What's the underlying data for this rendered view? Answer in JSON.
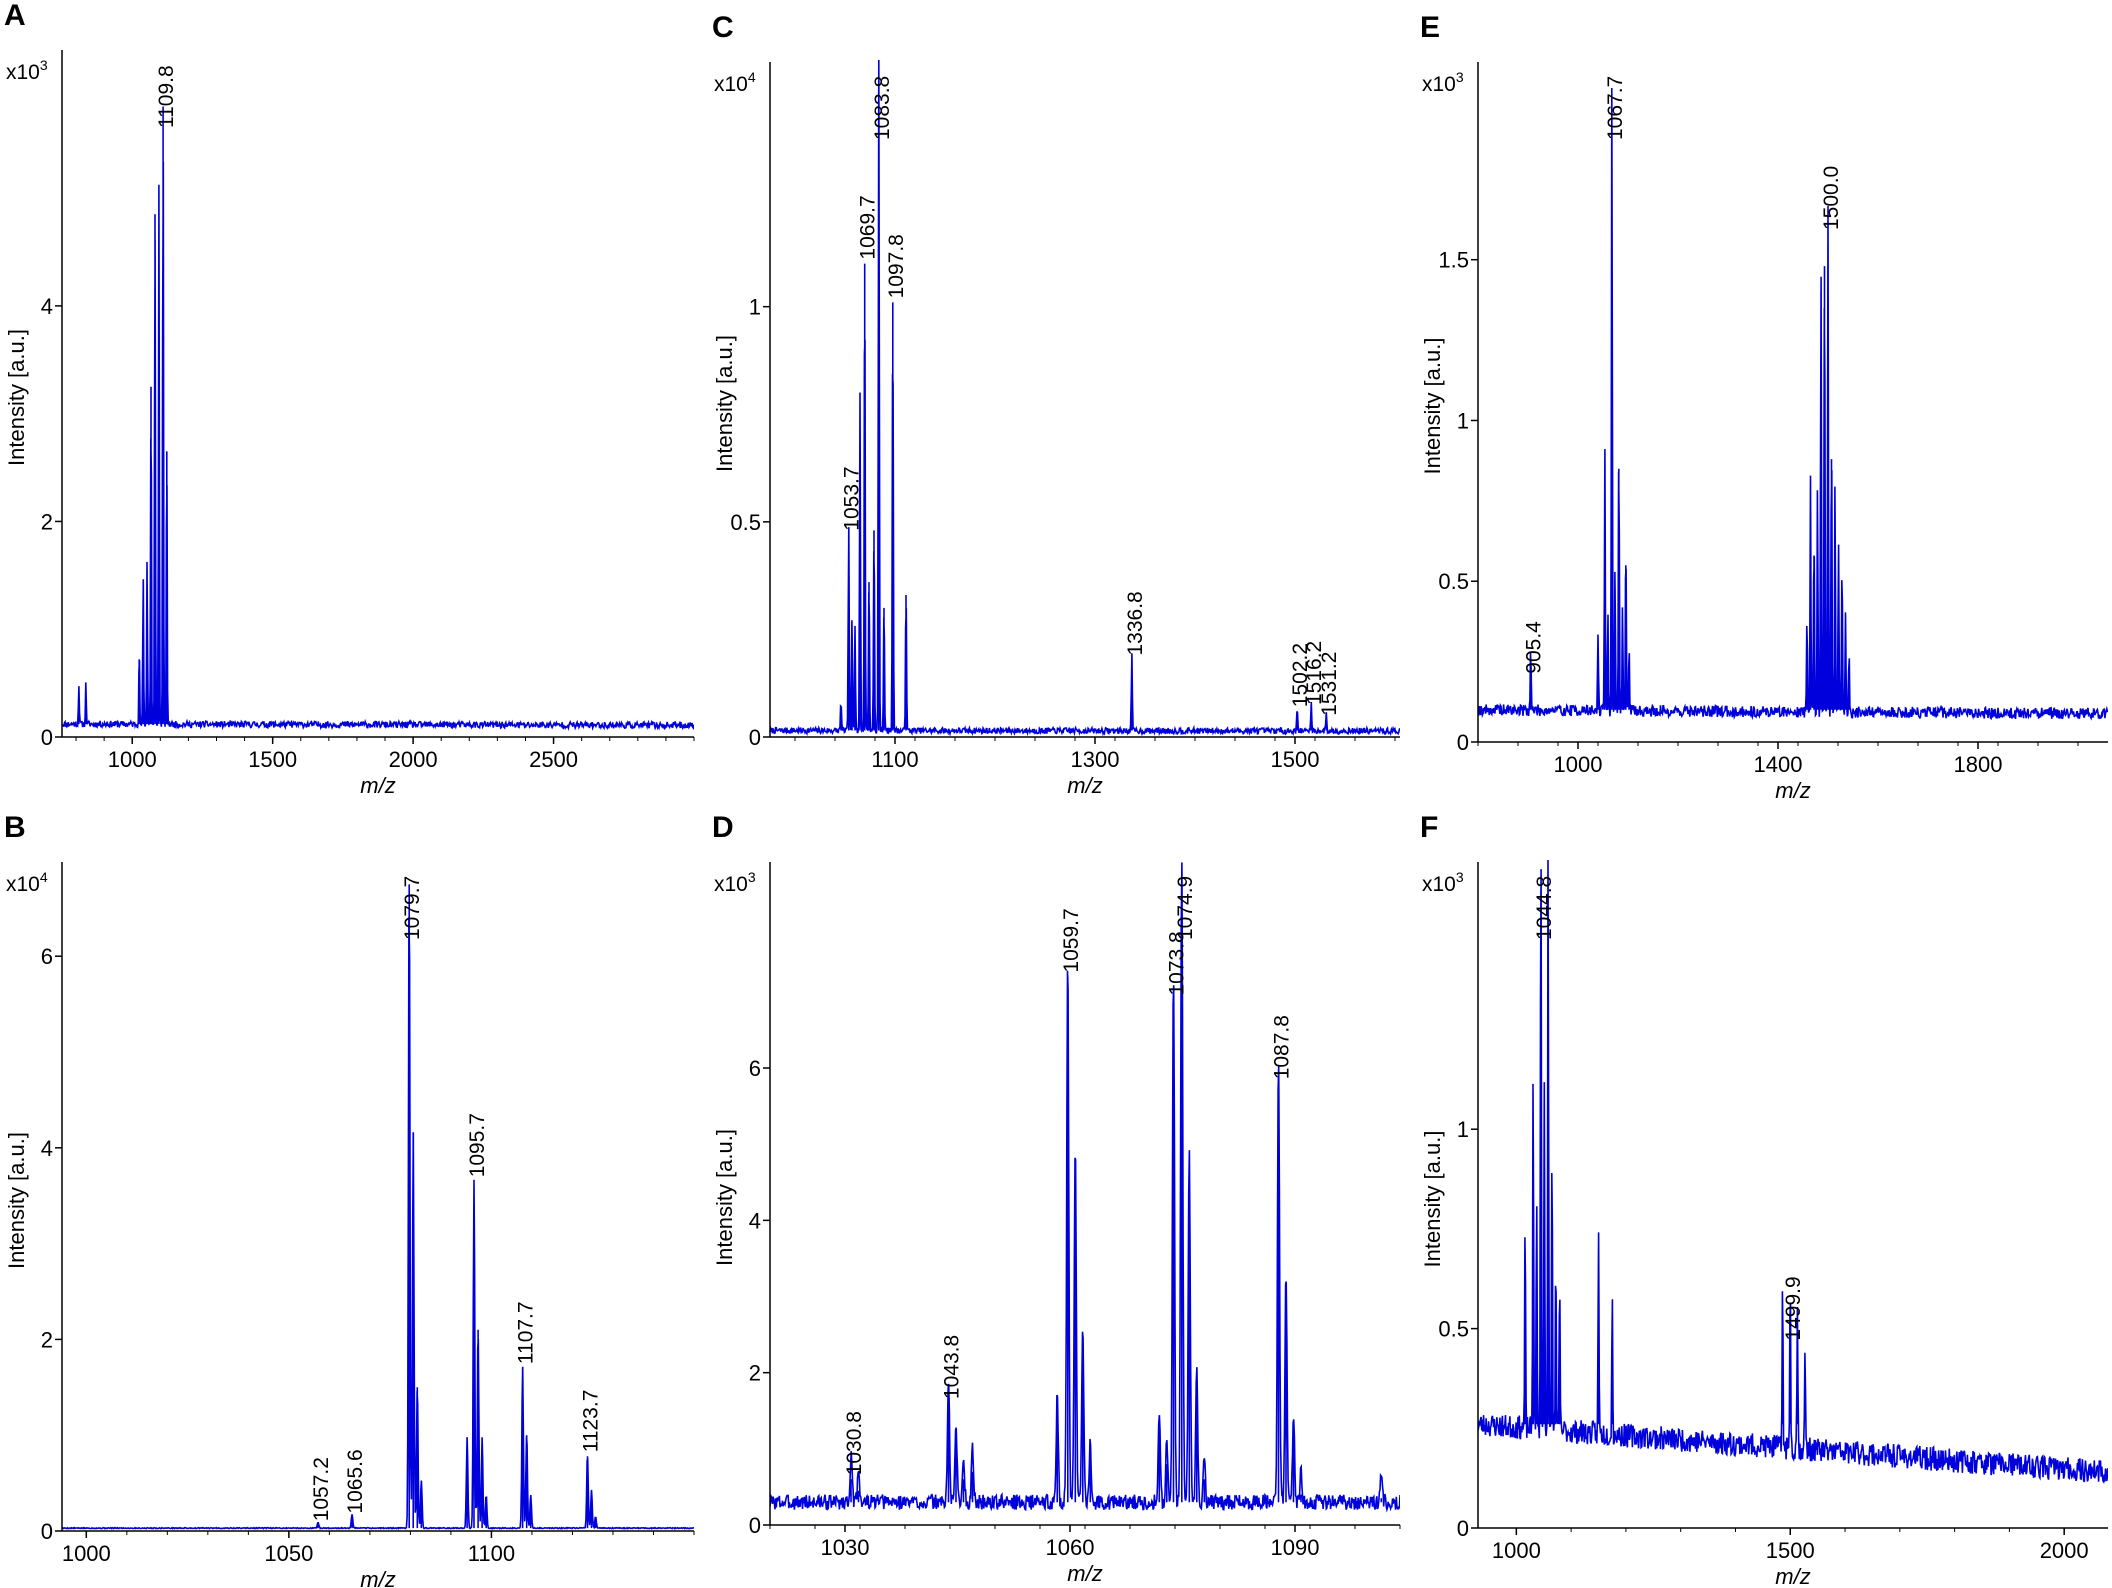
{
  "figure": {
    "colors": {
      "spectrum": "#0000dd",
      "axis": "#000000",
      "background": "#ffffff"
    }
  },
  "chart_data": [
    {
      "type": "line",
      "panel": "A",
      "title": "",
      "xlabel": "m/z",
      "ylabel": "Intensity [a.u.]",
      "y_multiplier": {
        "base": "x10",
        "exponent": "3"
      },
      "xlim": [
        750,
        3000
      ],
      "ylim": [
        0,
        6.3
      ],
      "xticks": [
        1000,
        1500,
        2000,
        2500
      ],
      "yticks": [
        0,
        2,
        4
      ],
      "baseline": {
        "level": 0.12,
        "noise": 0.03,
        "slope": -0.015,
        "seed": 11
      },
      "peaks": [
        {
          "x": 810,
          "y": 0.38
        },
        {
          "x": 835,
          "y": 0.38
        },
        {
          "x": 1025,
          "y": 0.72
        },
        {
          "x": 1039,
          "y": 1.35
        },
        {
          "x": 1053,
          "y": 1.55
        },
        {
          "x": 1067,
          "y": 3.25
        },
        {
          "x": 1081,
          "y": 4.85
        },
        {
          "x": 1095,
          "y": 5.0
        },
        {
          "x": 1109.8,
          "y": 5.85
        },
        {
          "x": 1123,
          "y": 2.65
        }
      ],
      "labels": [
        {
          "x": 1109.8,
          "y": 5.85,
          "text": "1109.8"
        }
      ]
    },
    {
      "type": "line",
      "panel": "B",
      "title": "",
      "xlabel": "m/z",
      "ylabel": "Intensity [a.u.]",
      "y_multiplier": {
        "base": "x10",
        "exponent": "4"
      },
      "xlim": [
        994,
        1150
      ],
      "ylim": [
        0,
        6.9
      ],
      "xticks": [
        1000,
        1050,
        1100
      ],
      "yticks": [
        0,
        2,
        4,
        6
      ],
      "baseline": {
        "level": 0.03,
        "noise": 0.005,
        "slope": 0,
        "seed": 5
      },
      "peaks": [
        {
          "x": 1057.2,
          "y": 0.06
        },
        {
          "x": 1065.6,
          "y": 0.14
        },
        {
          "x": 1079.7,
          "y": 6.75
        },
        {
          "x": 1080.7,
          "y": 4.15
        },
        {
          "x": 1081.7,
          "y": 1.5
        },
        {
          "x": 1082.7,
          "y": 0.5
        },
        {
          "x": 1094.0,
          "y": 0.95
        },
        {
          "x": 1095.7,
          "y": 3.65
        },
        {
          "x": 1096.7,
          "y": 2.1
        },
        {
          "x": 1097.7,
          "y": 0.95
        },
        {
          "x": 1098.7,
          "y": 0.35
        },
        {
          "x": 1107.7,
          "y": 1.7
        },
        {
          "x": 1108.7,
          "y": 1.0
        },
        {
          "x": 1109.7,
          "y": 0.35
        },
        {
          "x": 1123.7,
          "y": 0.78
        },
        {
          "x": 1124.7,
          "y": 0.4
        },
        {
          "x": 1125.7,
          "y": 0.12
        }
      ],
      "labels": [
        {
          "x": 1057.2,
          "y": 0.06,
          "text": "1057.2"
        },
        {
          "x": 1065.6,
          "y": 0.14,
          "text": "1065.6"
        },
        {
          "x": 1079.7,
          "y": 6.75,
          "text": "1079.7"
        },
        {
          "x": 1095.7,
          "y": 3.65,
          "text": "1095.7"
        },
        {
          "x": 1107.7,
          "y": 1.7,
          "text": "1107.7"
        },
        {
          "x": 1123.7,
          "y": 0.78,
          "text": "1123.7"
        }
      ]
    },
    {
      "type": "line",
      "panel": "C",
      "title": "",
      "xlabel": "m/z",
      "ylabel": "Intensity [a.u.]",
      "y_multiplier": {
        "base": "x10",
        "exponent": "4"
      },
      "xlim": [
        975,
        1605
      ],
      "ylim": [
        0,
        1.55
      ],
      "xticks": [
        1100,
        1300,
        1500
      ],
      "yticks": [
        0,
        0.5,
        1
      ],
      "baseline": {
        "level": 0.015,
        "noise": 0.007,
        "slope": -0.01,
        "seed": 7
      },
      "peaks": [
        {
          "x": 1046,
          "y": 0.07
        },
        {
          "x": 1053.7,
          "y": 0.47
        },
        {
          "x": 1057,
          "y": 0.26
        },
        {
          "x": 1060,
          "y": 0.25
        },
        {
          "x": 1065,
          "y": 0.79
        },
        {
          "x": 1069.7,
          "y": 1.1
        },
        {
          "x": 1074,
          "y": 0.36
        },
        {
          "x": 1079,
          "y": 0.48
        },
        {
          "x": 1083.8,
          "y": 1.57
        },
        {
          "x": 1089,
          "y": 0.3
        },
        {
          "x": 1097.8,
          "y": 1.01
        },
        {
          "x": 1111,
          "y": 0.33
        },
        {
          "x": 1336.8,
          "y": 0.18
        },
        {
          "x": 1502.2,
          "y": 0.06
        },
        {
          "x": 1516.2,
          "y": 0.065
        },
        {
          "x": 1531.2,
          "y": 0.04
        }
      ],
      "labels": [
        {
          "x": 1053.7,
          "y": 0.47,
          "text": "1053.7"
        },
        {
          "x": 1069.7,
          "y": 1.1,
          "text": "1069.7"
        },
        {
          "x": 1083.8,
          "y": 1.57,
          "text": "1083.8"
        },
        {
          "x": 1097.8,
          "y": 1.01,
          "text": "1097.8"
        },
        {
          "x": 1336.8,
          "y": 0.18,
          "text": "1336.8"
        },
        {
          "x": 1502.2,
          "y": 0.06,
          "text": "1502.2"
        },
        {
          "x": 1516.2,
          "y": 0.065,
          "text": "1516.2"
        },
        {
          "x": 1531.2,
          "y": 0.04,
          "text": "1531.2"
        }
      ]
    },
    {
      "type": "line",
      "panel": "D",
      "title": "",
      "xlabel": "m/z",
      "ylabel": "Intensity [a.u.]",
      "y_multiplier": {
        "base": "x10",
        "exponent": "3"
      },
      "xlim": [
        1020,
        1104
      ],
      "ylim": [
        0,
        8.6
      ],
      "xticks": [
        1030,
        1060,
        1090
      ],
      "yticks": [
        0,
        2,
        4,
        6
      ],
      "baseline": {
        "level": 0.3,
        "noise": 0.1,
        "slope": 0,
        "seed": 3
      },
      "peaks": [
        {
          "x": 1030.8,
          "y": 0.6
        },
        {
          "x": 1031.8,
          "y": 0.45
        },
        {
          "x": 1043.8,
          "y": 1.6
        },
        {
          "x": 1044.8,
          "y": 1.05
        },
        {
          "x": 1045.8,
          "y": 0.6
        },
        {
          "x": 1047.0,
          "y": 0.7
        },
        {
          "x": 1058.3,
          "y": 1.4
        },
        {
          "x": 1059.7,
          "y": 7.2
        },
        {
          "x": 1060.7,
          "y": 4.7
        },
        {
          "x": 1061.7,
          "y": 2.3
        },
        {
          "x": 1062.7,
          "y": 0.8
        },
        {
          "x": 1071.9,
          "y": 1.25
        },
        {
          "x": 1072.9,
          "y": 0.8
        },
        {
          "x": 1073.8,
          "y": 6.9
        },
        {
          "x": 1074.9,
          "y": 8.45
        },
        {
          "x": 1075.9,
          "y": 4.6
        },
        {
          "x": 1076.9,
          "y": 1.7
        },
        {
          "x": 1077.9,
          "y": 0.6
        },
        {
          "x": 1087.8,
          "y": 5.8
        },
        {
          "x": 1088.8,
          "y": 3.0
        },
        {
          "x": 1089.8,
          "y": 1.15
        },
        {
          "x": 1090.8,
          "y": 0.4
        },
        {
          "x": 1101.5,
          "y": 0.35
        }
      ],
      "labels": [
        {
          "x": 1030.8,
          "y": 0.6,
          "text": "1030.8"
        },
        {
          "x": 1043.8,
          "y": 1.6,
          "text": "1043.8"
        },
        {
          "x": 1059.7,
          "y": 7.2,
          "text": "1059.7"
        },
        {
          "x": 1073.8,
          "y": 6.9,
          "text": "1073.8"
        },
        {
          "x": 1074.9,
          "y": 8.45,
          "text": "1074.9"
        },
        {
          "x": 1087.8,
          "y": 5.8,
          "text": "1087.8"
        }
      ]
    },
    {
      "type": "line",
      "panel": "E",
      "title": "",
      "xlabel": "m/z",
      "ylabel": "Intensity [a.u.]",
      "y_multiplier": {
        "base": "x10",
        "exponent": "3"
      },
      "xlim": [
        800,
        2060
      ],
      "ylim": [
        0,
        2.09
      ],
      "xticks": [
        1000,
        1400,
        1800
      ],
      "yticks": [
        0,
        0.5,
        1,
        1.5
      ],
      "baseline": {
        "level": 0.1,
        "noise": 0.018,
        "slope": -0.02,
        "seed": 19
      },
      "peaks": [
        {
          "x": 905.4,
          "y": 0.2
        },
        {
          "x": 1040,
          "y": 0.25
        },
        {
          "x": 1053.7,
          "y": 0.83
        },
        {
          "x": 1059.7,
          "y": 0.3
        },
        {
          "x": 1067.7,
          "y": 1.97
        },
        {
          "x": 1074,
          "y": 0.45
        },
        {
          "x": 1081.7,
          "y": 0.85
        },
        {
          "x": 1089,
          "y": 0.35
        },
        {
          "x": 1095.7,
          "y": 0.55
        },
        {
          "x": 1102,
          "y": 0.2
        },
        {
          "x": 1458,
          "y": 0.3
        },
        {
          "x": 1465,
          "y": 0.73
        },
        {
          "x": 1472,
          "y": 0.58
        },
        {
          "x": 1479,
          "y": 0.72
        },
        {
          "x": 1486,
          "y": 1.4
        },
        {
          "x": 1493,
          "y": 1.48
        },
        {
          "x": 1500.0,
          "y": 1.58
        },
        {
          "x": 1507,
          "y": 0.88
        },
        {
          "x": 1514,
          "y": 0.72
        },
        {
          "x": 1521,
          "y": 0.55
        },
        {
          "x": 1528,
          "y": 0.48
        },
        {
          "x": 1535,
          "y": 0.3
        },
        {
          "x": 1542,
          "y": 0.18
        }
      ],
      "labels": [
        {
          "x": 905.4,
          "y": 0.2,
          "text": "905.4"
        },
        {
          "x": 1067.7,
          "y": 1.97,
          "text": "1067.7"
        },
        {
          "x": 1500.0,
          "y": 1.58,
          "text": "1500.0"
        }
      ]
    },
    {
      "type": "line",
      "panel": "F",
      "title": "",
      "xlabel": "m/z",
      "ylabel": "Intensity [a.u.]",
      "y_multiplier": {
        "base": "x10",
        "exponent": "3"
      },
      "xlim": [
        930,
        2080
      ],
      "ylim": [
        0,
        1.65
      ],
      "xticks": [
        1000,
        1500,
        2000
      ],
      "yticks": [
        0,
        0.5,
        1
      ],
      "baseline": {
        "level": 0.26,
        "noise": 0.03,
        "slope": -0.12,
        "seed": 23
      },
      "peaks": [
        {
          "x": 1016,
          "y": 0.52
        },
        {
          "x": 1030.7,
          "y": 0.95
        },
        {
          "x": 1037,
          "y": 0.58
        },
        {
          "x": 1044.8,
          "y": 1.6
        },
        {
          "x": 1051,
          "y": 0.88
        },
        {
          "x": 1058,
          "y": 1.5
        },
        {
          "x": 1065,
          "y": 0.75
        },
        {
          "x": 1072,
          "y": 0.45
        },
        {
          "x": 1079,
          "y": 0.38
        },
        {
          "x": 1150,
          "y": 0.5
        },
        {
          "x": 1175,
          "y": 0.35
        },
        {
          "x": 1486,
          "y": 0.45
        },
        {
          "x": 1499.9,
          "y": 0.46
        },
        {
          "x": 1513,
          "y": 0.38
        },
        {
          "x": 1527,
          "y": 0.26
        }
      ],
      "labels": [
        {
          "x": 1044.8,
          "y": 1.6,
          "text": "1044.8"
        },
        {
          "x": 1499.9,
          "y": 0.46,
          "text": "1499.9"
        }
      ]
    }
  ]
}
